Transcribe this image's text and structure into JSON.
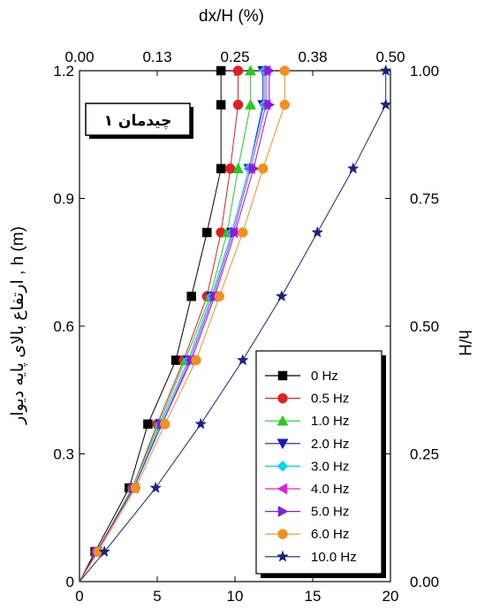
{
  "chart_data": {
    "type": "line",
    "top_xlabel": "dx/H (%)",
    "top_ticks": [
      "0.00",
      "0.13",
      "0.25",
      "0.38",
      "0.50"
    ],
    "bottom_ticks": [
      "0",
      "5",
      "10",
      "15",
      "20"
    ],
    "left_ylabel": "ارتفاع بالای پایه دیوار , h (m)",
    "left_ticks": [
      "0",
      "0.3",
      "0.6",
      "0.9",
      "1.2"
    ],
    "right_ylabel": "h/H",
    "right_ticks": [
      "0.00",
      "0.25",
      "0.50",
      "0.75",
      "1.00"
    ],
    "xlim": [
      0,
      20
    ],
    "ylim": [
      0,
      1.2
    ],
    "callout": "چیدمان ۱",
    "legend_position": "bottom-right",
    "x_units": "bottom axis scale (0–20)",
    "series": [
      {
        "name": "0 Hz",
        "color": "#000000",
        "marker": "square",
        "x": [
          0,
          1.0,
          3.2,
          4.4,
          6.2,
          7.2,
          8.2,
          9.1,
          9.1
        ],
        "y": [
          0,
          0.07,
          0.22,
          0.37,
          0.52,
          0.67,
          0.82,
          0.97,
          1.12
        ]
      },
      {
        "name": "0.5 Hz",
        "color": "#e02020",
        "marker": "circle",
        "x": [
          0,
          1.1,
          3.4,
          5.0,
          6.7,
          8.2,
          9.1,
          9.7,
          10.2
        ],
        "y": [
          0,
          0.07,
          0.22,
          0.37,
          0.52,
          0.67,
          0.82,
          0.97,
          1.12
        ]
      },
      {
        "name": "1.0 Hz",
        "color": "#22cc22",
        "marker": "triangle-up",
        "x": [
          0,
          1.1,
          3.4,
          5.1,
          6.8,
          8.4,
          9.5,
          10.2,
          11.0
        ],
        "y": [
          0,
          0.07,
          0.22,
          0.37,
          0.52,
          0.67,
          0.82,
          0.97,
          1.12
        ]
      },
      {
        "name": "2.0 Hz",
        "color": "#1a1ab8",
        "marker": "triangle-down",
        "x": [
          0,
          1.1,
          3.5,
          5.2,
          7.0,
          8.5,
          9.8,
          10.9,
          11.8
        ],
        "y": [
          0,
          0.07,
          0.22,
          0.37,
          0.52,
          0.67,
          0.82,
          0.97,
          1.12
        ]
      },
      {
        "name": "3.0 Hz",
        "color": "#00d8e8",
        "marker": "diamond",
        "x": [
          0,
          1.1,
          3.5,
          5.2,
          7.0,
          8.5,
          9.8,
          10.9,
          11.9
        ],
        "y": [
          0,
          0.07,
          0.22,
          0.37,
          0.52,
          0.67,
          0.82,
          0.97,
          1.12
        ]
      },
      {
        "name": "4.0 Hz",
        "color": "#e020e0",
        "marker": "triangle-left",
        "x": [
          0,
          1.1,
          3.5,
          5.3,
          7.1,
          8.6,
          9.9,
          11.0,
          12.0
        ],
        "y": [
          0,
          0.07,
          0.22,
          0.37,
          0.52,
          0.67,
          0.82,
          0.97,
          1.12
        ]
      },
      {
        "name": "5.0 Hz",
        "color": "#8020e0",
        "marker": "triangle-right",
        "x": [
          0,
          1.1,
          3.5,
          5.3,
          7.2,
          8.7,
          10.0,
          11.2,
          12.2
        ],
        "y": [
          0,
          0.07,
          0.22,
          0.37,
          0.52,
          0.67,
          0.82,
          0.97,
          1.12
        ]
      },
      {
        "name": "6.0 Hz",
        "color": "#f0901e",
        "marker": "circle",
        "x": [
          0,
          1.2,
          3.6,
          5.5,
          7.5,
          9.0,
          10.5,
          11.8,
          13.2
        ],
        "y": [
          0,
          0.07,
          0.22,
          0.37,
          0.52,
          0.67,
          0.82,
          0.97,
          1.12
        ]
      },
      {
        "name": "10.0 Hz",
        "color": "#1a237e",
        "marker": "star",
        "x": [
          0,
          1.6,
          4.9,
          7.8,
          10.5,
          13.0,
          15.3,
          17.6,
          19.7
        ],
        "y": [
          0,
          0.07,
          0.22,
          0.37,
          0.52,
          0.67,
          0.82,
          0.97,
          1.12
        ]
      }
    ],
    "top_segment_y": 1.2,
    "top_segment_x": {
      "0 Hz": 9.1,
      "0.5 Hz": 10.2,
      "1.0 Hz": 11.0,
      "2.0 Hz": 11.8,
      "3.0 Hz": 11.9,
      "4.0 Hz": 12.0,
      "5.0 Hz": 12.2,
      "6.0 Hz": 13.2,
      "10.0 Hz": 19.7
    }
  }
}
